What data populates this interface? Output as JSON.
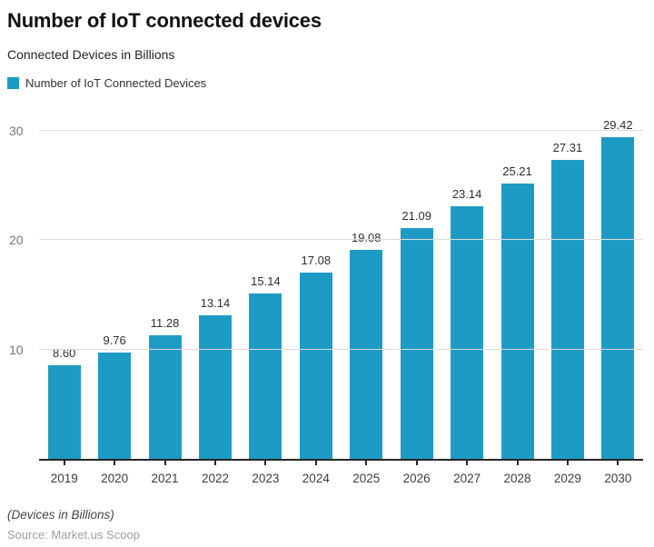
{
  "header": {
    "title": "Number of IoT connected devices",
    "subtitle": "Connected Devices in Billions"
  },
  "legend": {
    "label": "Number of IoT Connected Devices",
    "swatch_color": "#1E9BC5"
  },
  "chart_data": {
    "type": "bar",
    "title": "Number of IoT connected devices",
    "subtitle": "Connected Devices in Billions",
    "series_name": "Number of IoT Connected Devices",
    "categories": [
      "2019",
      "2020",
      "2021",
      "2022",
      "2023",
      "2024",
      "2025",
      "2026",
      "2027",
      "2028",
      "2029",
      "2030"
    ],
    "values": [
      8.6,
      9.76,
      11.28,
      13.14,
      15.14,
      17.08,
      19.08,
      21.09,
      23.14,
      25.21,
      27.31,
      29.42
    ],
    "value_labels": [
      "8.60",
      "9.76",
      "11.28",
      "13.14",
      "15.14",
      "17.08",
      "19.08",
      "21.09",
      "23.14",
      "25.21",
      "27.31",
      "29.42"
    ],
    "bar_color": "#1E9BC5",
    "xlabel": "",
    "ylabel": "Devices in Billions",
    "yticks": [
      10,
      20,
      30
    ],
    "ylim": [
      0,
      31.25
    ],
    "grid": "horizontal",
    "legend_position": "top-left"
  },
  "footer": {
    "note": "(Devices in Billions)",
    "source": "Source: Market.us Scoop"
  }
}
